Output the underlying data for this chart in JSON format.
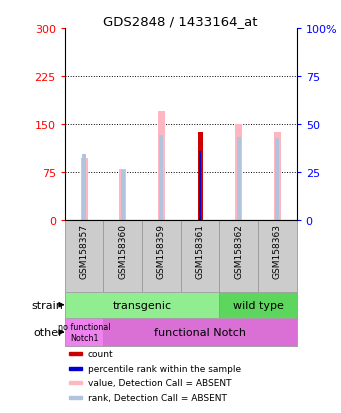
{
  "title": "GDS2848 / 1433164_at",
  "samples": [
    "GSM158357",
    "GSM158360",
    "GSM158359",
    "GSM158361",
    "GSM158362",
    "GSM158363"
  ],
  "value_absent": [
    97,
    80,
    170,
    0,
    150,
    138
  ],
  "rank_absent": [
    103,
    78,
    132,
    0,
    130,
    128
  ],
  "count": [
    0,
    0,
    0,
    138,
    0,
    0
  ],
  "percentile": [
    0,
    0,
    0,
    107,
    0,
    0
  ],
  "ylim_left": [
    0,
    300
  ],
  "ylim_right": [
    0,
    100
  ],
  "yticks_left": [
    0,
    75,
    150,
    225,
    300
  ],
  "yticks_right": [
    0,
    25,
    50,
    75,
    100
  ],
  "color_value_absent": "#ffb6c1",
  "color_rank_absent": "#b0c4de",
  "color_count": "#cc0000",
  "color_percentile": "#0000cc",
  "legend_items": [
    {
      "label": "count",
      "color": "#cc0000"
    },
    {
      "label": "percentile rank within the sample",
      "color": "#0000cc"
    },
    {
      "label": "value, Detection Call = ABSENT",
      "color": "#ffb6c1"
    },
    {
      "label": "rank, Detection Call = ABSENT",
      "color": "#b0c4de"
    }
  ]
}
